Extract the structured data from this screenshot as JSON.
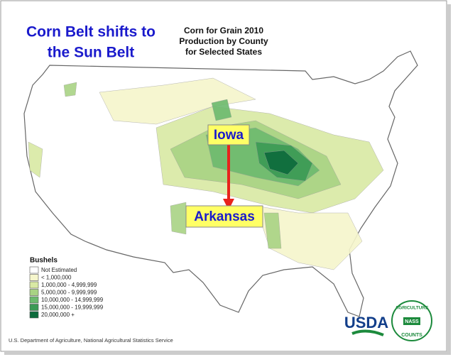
{
  "title": {
    "lines": [
      "Corn Belt shifts to",
      "the Sun Belt"
    ]
  },
  "map_title": {
    "lines": [
      "Corn for Grain 2010",
      "Production by County",
      "for Selected States"
    ]
  },
  "callouts": {
    "top": "Iowa",
    "bottom": "Arkansas"
  },
  "legend": {
    "title": "Bushels",
    "items": [
      {
        "label": "Not Estimated",
        "color": "#ffffff"
      },
      {
        "label": "< 1,000,000",
        "color": "#f6f6cc"
      },
      {
        "label": "1,000,000 -   4,999,999",
        "color": "#d9e9a4"
      },
      {
        "label": "5,000,000 -   9,999,999",
        "color": "#a9d384"
      },
      {
        "label": "10,000,000 - 14,999,999",
        "color": "#6cba6e"
      },
      {
        "label": "15,000,000 - 19,999,999",
        "color": "#3b9a55"
      },
      {
        "label": "20,000,000 +",
        "color": "#0d6b3c"
      }
    ]
  },
  "footer": "U.S. Department of Agriculture, National Agricultural Statistics Service",
  "logo": {
    "usda": "USDA",
    "ring_top": "AGRICULTURE",
    "ring_bottom": "COUNTS",
    "badge": "NASS"
  }
}
